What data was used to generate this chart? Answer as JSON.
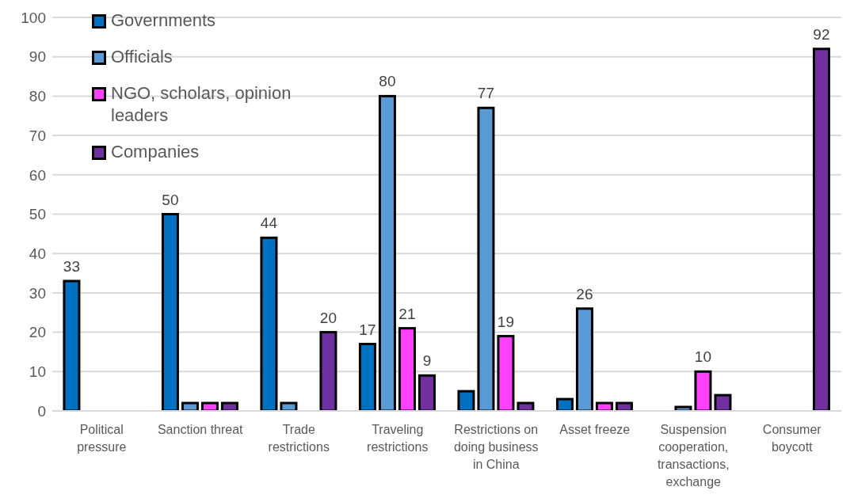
{
  "chart_data": {
    "type": "bar",
    "categories": [
      "Political pressure",
      "Sanction threat",
      "Trade restrictions",
      "Traveling restrictions",
      "Restrictions on doing business in China",
      "Asset freeze",
      "Suspension cooperation, transactions, exchange",
      "Consumer boycott"
    ],
    "series": [
      {
        "name": "Governments",
        "color": "#0070c0",
        "values": [
          33,
          50,
          44,
          17,
          5,
          3,
          null,
          null
        ],
        "value_labels": [
          "33",
          "50",
          "44",
          "17",
          null,
          null,
          null,
          null
        ]
      },
      {
        "name": "Officials",
        "color": "#5b9bd5",
        "values": [
          null,
          2,
          2,
          80,
          77,
          26,
          1,
          null
        ],
        "value_labels": [
          null,
          null,
          null,
          "80",
          "77",
          "26",
          null,
          null
        ]
      },
      {
        "name": "NGO, scholars, opinion leaders",
        "color": "#ff40ff",
        "values": [
          null,
          2,
          null,
          21,
          19,
          2,
          10,
          null
        ],
        "value_labels": [
          null,
          null,
          null,
          "21",
          "19",
          null,
          "10",
          null
        ]
      },
      {
        "name": "Companies",
        "color": "#7030a0",
        "values": [
          null,
          2,
          20,
          9,
          2,
          2,
          4,
          92
        ],
        "value_labels": [
          null,
          null,
          "20",
          "9",
          null,
          null,
          null,
          "92"
        ]
      }
    ],
    "ylim": [
      0,
      100
    ],
    "yticks": [
      0,
      10,
      20,
      30,
      40,
      50,
      60,
      70,
      80,
      90,
      100
    ],
    "grid": "y",
    "legend": "top left"
  }
}
